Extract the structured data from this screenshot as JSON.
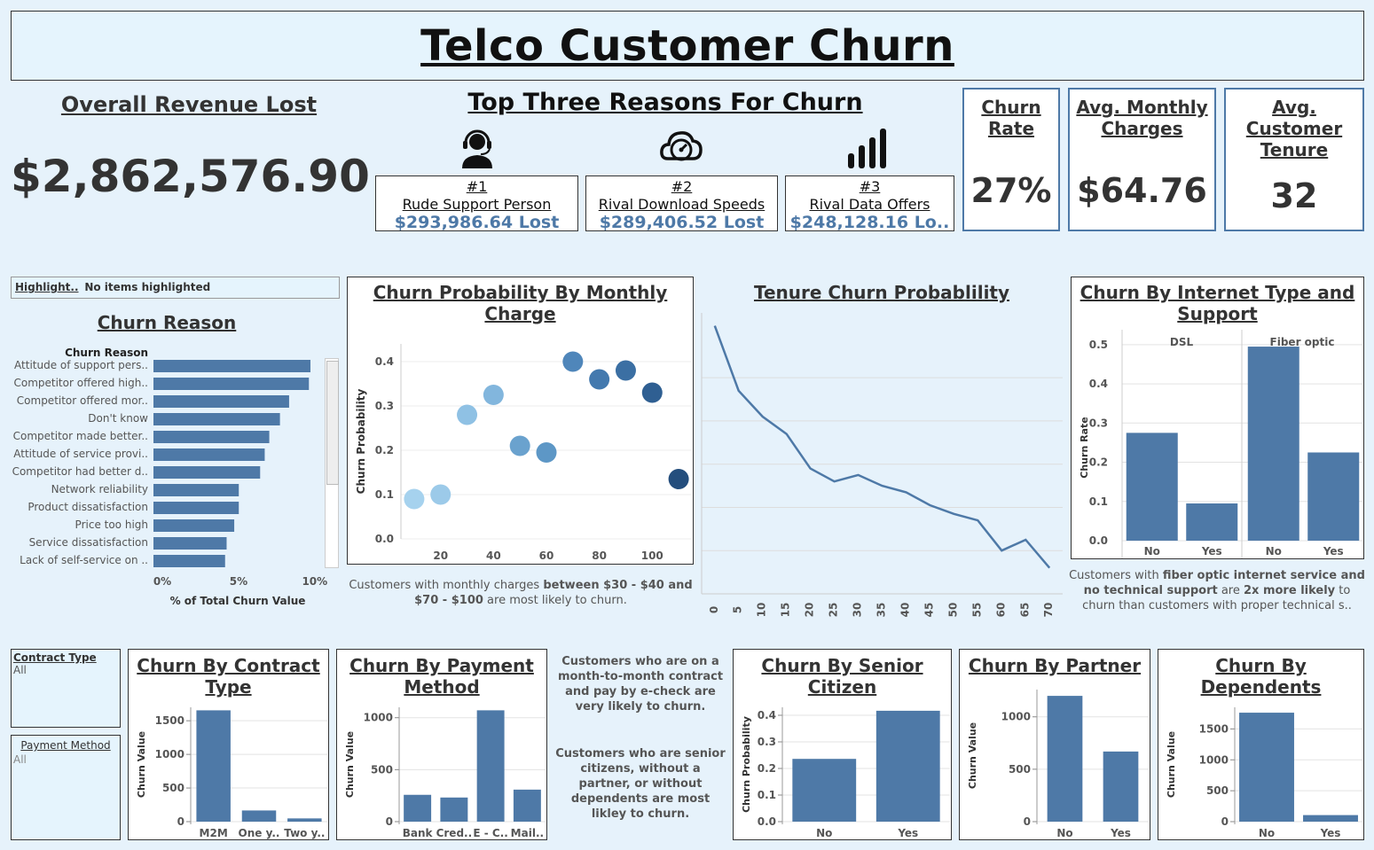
{
  "title": "Telco Customer Churn",
  "revenue": {
    "title": "Overall Revenue Lost",
    "value": "$2,862,576.90"
  },
  "reasons": {
    "title": "Top Three Reasons For Churn",
    "items": [
      {
        "rank": "#1",
        "label": "Rude Support Person",
        "lost": "$293,986.64 Lost",
        "icon": "support-agent-icon"
      },
      {
        "rank": "#2",
        "label": "Rival Download Speeds",
        "lost": "$289,406.52 Lost",
        "icon": "speedometer-cloud-icon"
      },
      {
        "rank": "#3",
        "label": "Rival Data Offers",
        "lost": "$248,128.16 Lo..",
        "icon": "signal-bars-icon"
      }
    ]
  },
  "kpis": [
    {
      "title": "Churn Rate",
      "value": "27%"
    },
    {
      "title": "Avg. Monthly Charges",
      "value": "$64.76"
    },
    {
      "title": "Avg. Customer Tenure",
      "value": "32"
    }
  ],
  "highlight": {
    "label": "Highlight..",
    "value": "No items highlighted"
  },
  "churn_reason_title": "Churn Reason",
  "monthly_title": "Churn Probability By Monthly Charge",
  "monthly_note": {
    "a": "Customers with monthly charges ",
    "b": "between $30 - $40 and $70 - $100",
    "c": " are most likely to churn."
  },
  "tenure_title": "Tenure Churn Probablility",
  "internet_title": "Churn By Internet Type and Support",
  "internet_note": {
    "a": "Customers with ",
    "b": "fiber optic internet service and no technical support",
    "c": " are ",
    "d": "2x more likely",
    "e": " to churn than customers with proper technical s.."
  },
  "filters": {
    "contract": {
      "label": "Contract Type",
      "value": "All"
    },
    "payment": {
      "label": "Payment Method",
      "value": "All"
    }
  },
  "contract_title": "Churn By Contract Type",
  "payment_title": "Churn By Payment Method",
  "insight1": "Customers who are on a month-to-month contract and pay by e-check are very likely to churn.",
  "insight2": "Customers who are senior citizens, without a partner, or without dependents are most likley to churn.",
  "senior_title": "Churn By Senior Citizen",
  "partner_title": "Churn By Partner",
  "dependents_title": "Churn By Dependents",
  "colors": {
    "bar": "#4e79a7",
    "title_bg": "#e5f4fd",
    "page_bg": "#e6f2fb"
  },
  "chart_data": [
    {
      "id": "churn_reason",
      "type": "bar",
      "orientation": "horizontal",
      "header": "Churn Reason",
      "xlabel": "% of Total Churn Value",
      "xticks": [
        "0%",
        "5%",
        "10%"
      ],
      "xlim": [
        0,
        11
      ],
      "categories": [
        "Attitude of support pers..",
        "Competitor offered high..",
        "Competitor offered mor..",
        "Don't know",
        "Competitor made better..",
        "Attitude of service provi..",
        "Competitor had better d..",
        "Network reliability",
        "Product dissatisfaction",
        "Price too high",
        "Service dissatisfaction",
        "Lack of self-service on .."
      ],
      "values": [
        10.3,
        10.2,
        8.9,
        8.3,
        7.6,
        7.3,
        7.0,
        5.6,
        5.6,
        5.3,
        4.8,
        4.7
      ]
    },
    {
      "id": "monthly",
      "type": "scatter",
      "ylabel": "Churn Probability",
      "x": [
        10,
        20,
        30,
        40,
        50,
        60,
        70,
        80,
        90,
        100,
        110
      ],
      "y": [
        0.09,
        0.1,
        0.28,
        0.325,
        0.21,
        0.195,
        0.4,
        0.36,
        0.38,
        0.33,
        0.135
      ],
      "xticks": [
        "20",
        "40",
        "60",
        "80",
        "100"
      ],
      "yticks": [
        "0.0",
        "0.1",
        "0.2",
        "0.3",
        "0.4"
      ],
      "xlim": [
        5,
        115
      ],
      "ylim": [
        0,
        0.44
      ]
    },
    {
      "id": "tenure",
      "type": "line",
      "x": [
        0,
        5,
        10,
        15,
        20,
        25,
        30,
        35,
        40,
        45,
        50,
        55,
        60,
        65,
        70
      ],
      "y": [
        0.62,
        0.47,
        0.41,
        0.37,
        0.29,
        0.26,
        0.275,
        0.25,
        0.235,
        0.205,
        0.185,
        0.17,
        0.1,
        0.125,
        0.06
      ],
      "xticks": [
        "0",
        "5",
        "10",
        "15",
        "20",
        "25",
        "30",
        "35",
        "40",
        "45",
        "50",
        "55",
        "60",
        "65",
        "70"
      ],
      "xlim": [
        -2,
        72
      ],
      "ylim": [
        0,
        0.65
      ]
    },
    {
      "id": "internet",
      "type": "bar",
      "ylabel": "Churn Rate",
      "groups": [
        "DSL",
        "Fiber optic"
      ],
      "categories": [
        "No",
        "Yes",
        "No",
        "Yes"
      ],
      "values": [
        0.275,
        0.095,
        0.495,
        0.225
      ],
      "yticks": [
        "0.0",
        "0.1",
        "0.2",
        "0.3",
        "0.4",
        "0.5"
      ],
      "ylim": [
        0,
        0.52
      ]
    },
    {
      "id": "contract",
      "type": "bar",
      "ylabel": "Churn Value",
      "categories": [
        "M2M",
        "One y..",
        "Two y.."
      ],
      "values": [
        1655,
        166,
        48
      ],
      "yticks": [
        "0",
        "500",
        "1000",
        "1500"
      ],
      "ylim": [
        0,
        1700
      ]
    },
    {
      "id": "payment",
      "type": "bar",
      "ylabel": "Churn Value",
      "categories": [
        "Bank",
        "Cred..",
        "E - C..",
        "Mail.."
      ],
      "values": [
        258,
        232,
        1071,
        308
      ],
      "yticks": [
        "0",
        "500",
        "1000"
      ],
      "ylim": [
        0,
        1100
      ]
    },
    {
      "id": "senior",
      "type": "bar",
      "ylabel": "Churn Probability",
      "categories": [
        "No",
        "Yes"
      ],
      "values": [
        0.236,
        0.417
      ],
      "yticks": [
        "0.0",
        "0.1",
        "0.2",
        "0.3",
        "0.4"
      ],
      "ylim": [
        0,
        0.43
      ]
    },
    {
      "id": "partner",
      "type": "bar",
      "ylabel": "Churn Value",
      "categories": [
        "No",
        "Yes"
      ],
      "values": [
        1200,
        669
      ],
      "yticks": [
        "0",
        "500",
        "1000"
      ],
      "ylim": [
        0,
        1260
      ]
    },
    {
      "id": "dependents",
      "type": "bar",
      "ylabel": "Churn Value",
      "categories": [
        "No",
        "Yes"
      ],
      "values": [
        1763,
        106
      ],
      "yticks": [
        "0",
        "500",
        "1000",
        "1500"
      ],
      "ylim": [
        0,
        1850
      ]
    }
  ]
}
